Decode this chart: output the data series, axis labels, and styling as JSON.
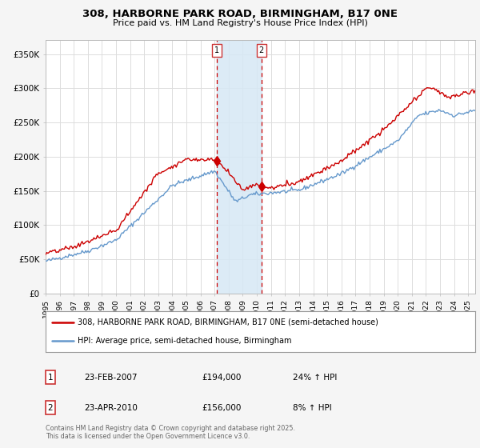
{
  "title1": "308, HARBORNE PARK ROAD, BIRMINGHAM, B17 0NE",
  "title2": "Price paid vs. HM Land Registry's House Price Index (HPI)",
  "ylabel_ticks": [
    "£0",
    "£50K",
    "£100K",
    "£150K",
    "£200K",
    "£250K",
    "£300K",
    "£350K"
  ],
  "ytick_vals": [
    0,
    50000,
    100000,
    150000,
    200000,
    250000,
    300000,
    350000
  ],
  "ylim": [
    0,
    370000
  ],
  "xlim_start": 1995,
  "xlim_end": 2025.5,
  "sale1_date": 2007.13,
  "sale1_price": 194000,
  "sale1_label": "1",
  "sale1_hpi": "24% ↑ HPI",
  "sale1_date_str": "23-FEB-2007",
  "sale2_date": 2010.31,
  "sale2_price": 156000,
  "sale2_label": "2",
  "sale2_hpi": "8% ↑ HPI",
  "sale2_date_str": "23-APR-2010",
  "line1_color": "#cc0000",
  "line2_color": "#6699cc",
  "shade_color": "#d6e8f5",
  "vline_color": "#cc0000",
  "legend1_text": "308, HARBORNE PARK ROAD, BIRMINGHAM, B17 0NE (semi-detached house)",
  "legend2_text": "HPI: Average price, semi-detached house, Birmingham",
  "footer": "Contains HM Land Registry data © Crown copyright and database right 2025.\nThis data is licensed under the Open Government Licence v3.0.",
  "background": "#f5f5f5",
  "plot_background": "#ffffff",
  "grid_color": "#dddddd"
}
